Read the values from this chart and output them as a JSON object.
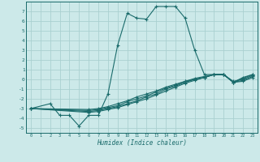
{
  "title": "",
  "xlabel": "Humidex (Indice chaleur)",
  "bg_color": "#cce9e9",
  "grid_color": "#aad0d0",
  "line_color": "#1a6b6b",
  "xlim": [
    -0.5,
    23.5
  ],
  "ylim": [
    -5.5,
    8.0
  ],
  "xticks": [
    0,
    1,
    2,
    3,
    4,
    5,
    6,
    7,
    8,
    9,
    10,
    11,
    12,
    13,
    14,
    15,
    16,
    17,
    18,
    19,
    20,
    21,
    22,
    23
  ],
  "yticks": [
    -5,
    -4,
    -3,
    -2,
    -1,
    0,
    1,
    2,
    3,
    4,
    5,
    6,
    7
  ],
  "series": [
    {
      "x": [
        0,
        2,
        3,
        4,
        5,
        6,
        7,
        8,
        9,
        10,
        11,
        12,
        13,
        14,
        15,
        16,
        17,
        18,
        19,
        20,
        21,
        22,
        23
      ],
      "y": [
        -3.0,
        -2.5,
        -3.7,
        -3.7,
        -4.8,
        -3.7,
        -3.7,
        -1.5,
        3.5,
        6.8,
        6.3,
        6.2,
        7.5,
        7.5,
        7.5,
        6.3,
        3.0,
        0.5,
        0.5,
        0.5,
        -0.3,
        0.2,
        0.5
      ]
    },
    {
      "x": [
        0,
        6,
        7,
        8,
        9,
        10,
        11,
        12,
        13,
        14,
        15,
        16,
        17,
        18,
        19,
        20,
        21,
        22,
        23
      ],
      "y": [
        -3.0,
        -3.1,
        -3.0,
        -2.8,
        -2.5,
        -2.2,
        -1.8,
        -1.5,
        -1.2,
        -0.8,
        -0.5,
        -0.2,
        0.0,
        0.2,
        0.5,
        0.5,
        -0.3,
        -0.2,
        0.2
      ]
    },
    {
      "x": [
        0,
        6,
        7,
        8,
        9,
        10,
        11,
        12,
        13,
        14,
        15,
        16,
        17,
        18,
        19,
        20,
        21,
        22,
        23
      ],
      "y": [
        -3.0,
        -3.2,
        -3.1,
        -2.9,
        -2.7,
        -2.3,
        -2.0,
        -1.7,
        -1.3,
        -0.9,
        -0.6,
        -0.2,
        0.1,
        0.3,
        0.5,
        0.5,
        -0.3,
        -0.1,
        0.3
      ]
    },
    {
      "x": [
        0,
        6,
        7,
        8,
        9,
        10,
        11,
        12,
        13,
        14,
        15,
        16,
        17,
        18,
        19,
        20,
        21,
        22,
        23
      ],
      "y": [
        -3.0,
        -3.3,
        -3.2,
        -3.0,
        -2.8,
        -2.5,
        -2.2,
        -1.8,
        -1.5,
        -1.0,
        -0.7,
        -0.3,
        0.0,
        0.2,
        0.5,
        0.5,
        -0.2,
        0.0,
        0.4
      ]
    },
    {
      "x": [
        0,
        6,
        7,
        8,
        9,
        10,
        11,
        12,
        13,
        14,
        15,
        16,
        17,
        18,
        19,
        20,
        21,
        22,
        23
      ],
      "y": [
        -3.0,
        -3.4,
        -3.3,
        -3.1,
        -2.9,
        -2.6,
        -2.3,
        -2.0,
        -1.6,
        -1.2,
        -0.8,
        -0.4,
        -0.1,
        0.2,
        0.5,
        0.5,
        -0.3,
        0.1,
        0.5
      ]
    }
  ]
}
